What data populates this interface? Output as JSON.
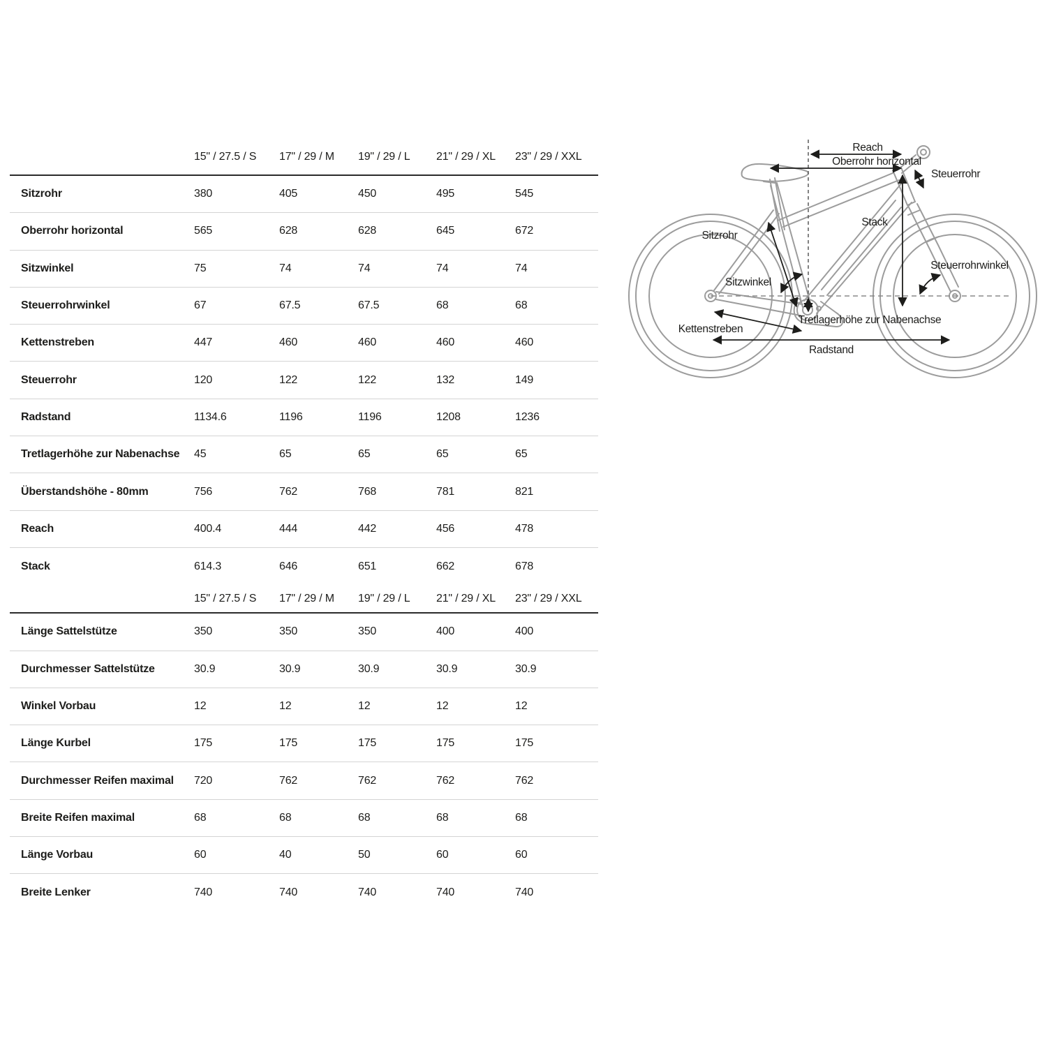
{
  "table": {
    "columns": [
      "15\" / 27.5 / S",
      "17\" / 29 / M",
      "19\" / 29 / L",
      "21\" / 29 / XL",
      "23\" / 29 / XXL"
    ],
    "sections": [
      {
        "name": "frame-geometry",
        "rows": [
          {
            "label": "Sitzrohr",
            "values": [
              "380",
              "405",
              "450",
              "495",
              "545"
            ]
          },
          {
            "label": "Oberrohr horizontal",
            "values": [
              "565",
              "628",
              "628",
              "645",
              "672"
            ]
          },
          {
            "label": "Sitzwinkel",
            "values": [
              "75",
              "74",
              "74",
              "74",
              "74"
            ]
          },
          {
            "label": "Steuerrohrwinkel",
            "values": [
              "67",
              "67.5",
              "67.5",
              "68",
              "68"
            ]
          },
          {
            "label": "Kettenstreben",
            "values": [
              "447",
              "460",
              "460",
              "460",
              "460"
            ]
          },
          {
            "label": "Steuerrohr",
            "values": [
              "120",
              "122",
              "122",
              "132",
              "149"
            ]
          },
          {
            "label": "Radstand",
            "values": [
              "1134.6",
              "1196",
              "1196",
              "1208",
              "1236"
            ]
          },
          {
            "label": "Tretlagerhöhe zur Nabenachse",
            "values": [
              "45",
              "65",
              "65",
              "65",
              "65"
            ]
          },
          {
            "label": "Überstandshöhe - 80mm",
            "values": [
              "756",
              "762",
              "768",
              "781",
              "821"
            ]
          },
          {
            "label": "Reach",
            "values": [
              "400.4",
              "444",
              "442",
              "456",
              "478"
            ]
          },
          {
            "label": "Stack",
            "values": [
              "614.3",
              "646",
              "651",
              "662",
              "678"
            ]
          }
        ]
      },
      {
        "name": "components",
        "rows": [
          {
            "label": "Länge Sattelstütze",
            "values": [
              "350",
              "350",
              "350",
              "400",
              "400"
            ]
          },
          {
            "label": "Durchmesser Sattelstütze",
            "values": [
              "30.9",
              "30.9",
              "30.9",
              "30.9",
              "30.9"
            ]
          },
          {
            "label": "Winkel Vorbau",
            "values": [
              "12",
              "12",
              "12",
              "12",
              "12"
            ]
          },
          {
            "label": "Länge Kurbel",
            "values": [
              "175",
              "175",
              "175",
              "175",
              "175"
            ]
          },
          {
            "label": "Durchmesser Reifen maximal",
            "values": [
              "720",
              "762",
              "762",
              "762",
              "762"
            ]
          },
          {
            "label": "Breite Reifen maximal",
            "values": [
              "68",
              "68",
              "68",
              "68",
              "68"
            ]
          },
          {
            "label": "Länge Vorbau",
            "values": [
              "60",
              "40",
              "50",
              "60",
              "60"
            ]
          },
          {
            "label": "Breite Lenker",
            "values": [
              "740",
              "740",
              "740",
              "740",
              "740"
            ]
          }
        ]
      }
    ]
  },
  "diagram": {
    "labels": {
      "reach": "Reach",
      "oberrohr_horizontal": "Oberrohr horizontal",
      "steuerrohr": "Steuerrohr",
      "stack": "Stack",
      "sitzrohr": "Sitzrohr",
      "sitzwinkel": "Sitzwinkel",
      "steuerrohrwinkel": "Steuerrohrwinkel",
      "tretlagerhoehe": "Tretlagerhöhe zur Nabenachse",
      "kettenstreben": "Kettenstreben",
      "radstand": "Radstand"
    }
  },
  "colors": {
    "text": "#1d1d1b",
    "separator": "#d4d4d4",
    "header_rule": "#2b2b2b",
    "frame_gray": "#9c9c9c",
    "dash_gray": "#8a8a8a"
  }
}
